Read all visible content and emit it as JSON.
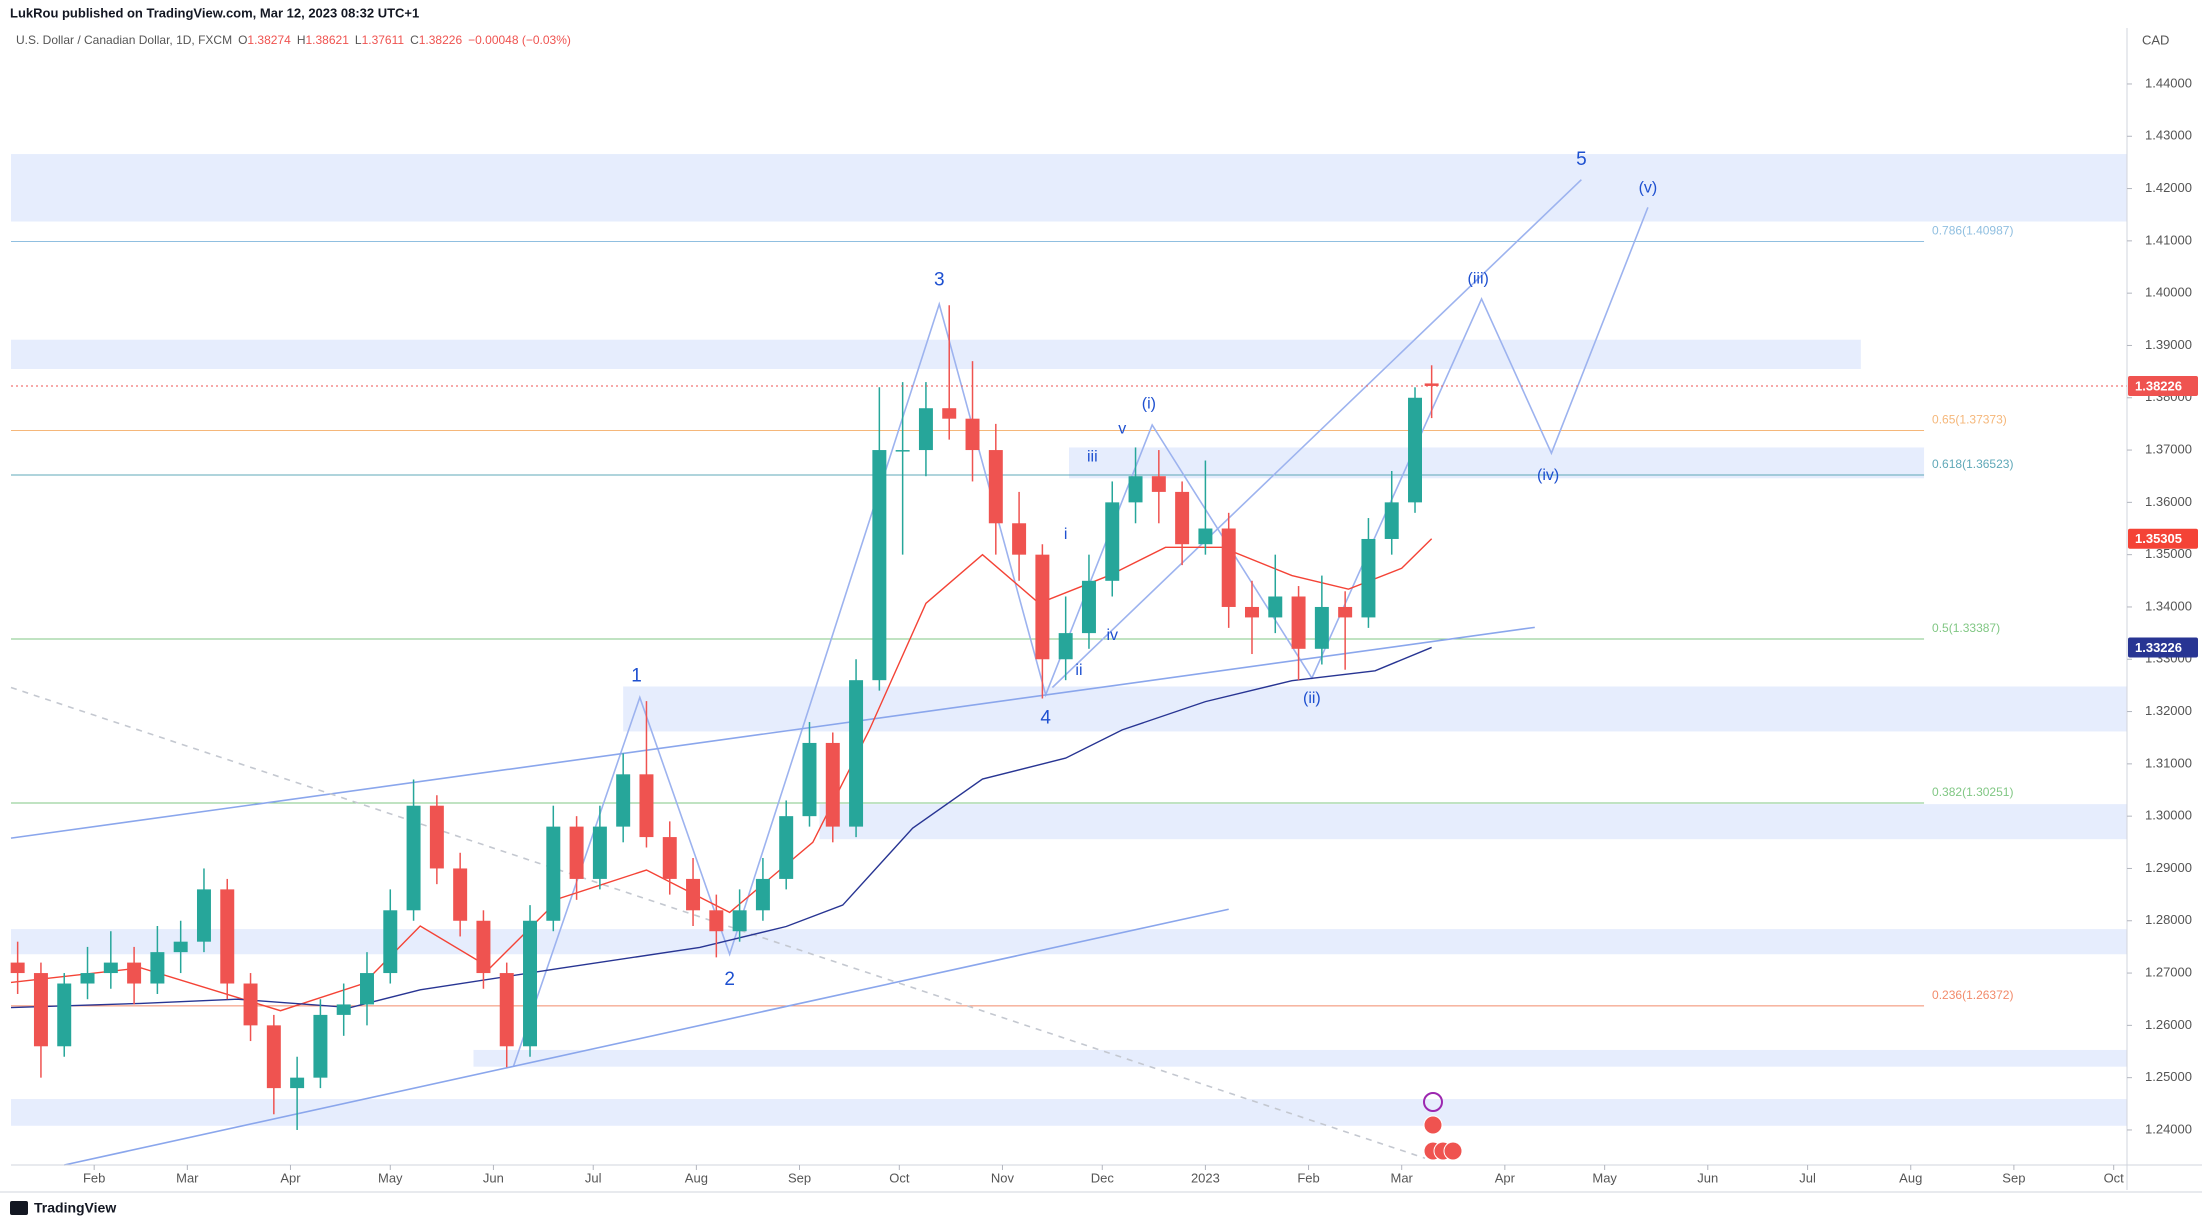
{
  "header": {
    "publisher": "LukRou published on TradingView.com, Mar 12, 2023 08:32 UTC+1",
    "symbol": "U.S. Dollar / Canadian Dollar, 1D, FXCM",
    "ohlc_letters": [
      "O",
      "H",
      "L",
      "C"
    ],
    "change": "−0.00048 (−0.03%)",
    "currency": "CAD",
    "brand": "TradingView"
  },
  "chart_data": {
    "type": "candlestick",
    "x": [
      2,
      9,
      16,
      23,
      30,
      37,
      44,
      51,
      58,
      65,
      72,
      79,
      86,
      93,
      100,
      107,
      114,
      121,
      128,
      135,
      142,
      149,
      156,
      163,
      170,
      177,
      184,
      191,
      198,
      205,
      212,
      219,
      226,
      233,
      240,
      247,
      254,
      261,
      268,
      275,
      282,
      289,
      296,
      303,
      310,
      317,
      324,
      331,
      338,
      345,
      352,
      359,
      366,
      373,
      380,
      387,
      394,
      401,
      408,
      415,
      422,
      427
    ],
    "open": [
      1.272,
      1.27,
      1.256,
      1.268,
      1.27,
      1.272,
      1.268,
      1.274,
      1.276,
      1.286,
      1.268,
      1.26,
      1.248,
      1.25,
      1.262,
      1.264,
      1.27,
      1.282,
      1.302,
      1.29,
      1.28,
      1.27,
      1.256,
      1.28,
      1.298,
      1.288,
      1.298,
      1.308,
      1.296,
      1.288,
      1.282,
      1.278,
      1.282,
      1.288,
      1.3,
      1.314,
      1.298,
      1.326,
      1.37,
      1.37,
      1.378,
      1.376,
      1.37,
      1.356,
      1.35,
      1.33,
      1.335,
      1.345,
      1.36,
      1.365,
      1.362,
      1.352,
      1.355,
      1.34,
      1.338,
      1.342,
      1.332,
      1.34,
      1.338,
      1.353,
      1.36,
      1.38274
    ],
    "high": [
      1.276,
      1.272,
      1.27,
      1.275,
      1.278,
      1.275,
      1.279,
      1.28,
      1.29,
      1.288,
      1.27,
      1.262,
      1.254,
      1.265,
      1.268,
      1.274,
      1.286,
      1.307,
      1.304,
      1.293,
      1.282,
      1.272,
      1.283,
      1.302,
      1.3,
      1.302,
      1.312,
      1.322,
      1.299,
      1.292,
      1.285,
      1.286,
      1.292,
      1.303,
      1.318,
      1.316,
      1.33,
      1.382,
      1.383,
      1.383,
      1.3977,
      1.387,
      1.375,
      1.362,
      1.352,
      1.342,
      1.35,
      1.364,
      1.3705,
      1.37,
      1.364,
      1.368,
      1.358,
      1.345,
      1.35,
      1.344,
      1.346,
      1.343,
      1.357,
      1.366,
      1.382,
      1.38621
    ],
    "low": [
      1.266,
      1.25,
      1.254,
      1.265,
      1.267,
      1.264,
      1.266,
      1.27,
      1.274,
      1.265,
      1.257,
      1.243,
      1.24,
      1.248,
      1.258,
      1.26,
      1.268,
      1.28,
      1.287,
      1.277,
      1.267,
      1.252,
      1.254,
      1.278,
      1.284,
      1.286,
      1.295,
      1.294,
      1.285,
      1.279,
      1.273,
      1.276,
      1.28,
      1.286,
      1.298,
      1.295,
      1.296,
      1.324,
      1.35,
      1.365,
      1.372,
      1.364,
      1.35,
      1.345,
      1.3225,
      1.326,
      1.332,
      1.342,
      1.356,
      1.356,
      1.348,
      1.35,
      1.336,
      1.331,
      1.335,
      1.326,
      1.329,
      1.328,
      1.336,
      1.35,
      1.358,
      1.37611
    ],
    "close": [
      1.27,
      1.256,
      1.268,
      1.27,
      1.272,
      1.268,
      1.274,
      1.276,
      1.286,
      1.268,
      1.26,
      1.248,
      1.25,
      1.262,
      1.264,
      1.27,
      1.282,
      1.302,
      1.29,
      1.28,
      1.27,
      1.256,
      1.28,
      1.298,
      1.288,
      1.298,
      1.308,
      1.296,
      1.288,
      1.282,
      1.278,
      1.282,
      1.288,
      1.3,
      1.314,
      1.298,
      1.326,
      1.37,
      1.37,
      1.378,
      1.376,
      1.37,
      1.356,
      1.35,
      1.33,
      1.335,
      1.345,
      1.36,
      1.365,
      1.362,
      1.352,
      1.355,
      1.34,
      1.338,
      1.342,
      1.332,
      1.34,
      1.338,
      1.353,
      1.36,
      1.38,
      1.38226
    ],
    "up_color": "#26a69a",
    "down_color": "#ef5350",
    "moving_averages": [
      {
        "color": "#f44336",
        "x": [
          0,
          39,
          81,
          106,
          123,
          144,
          165,
          191,
          216,
          241,
          258,
          275,
          292,
          309,
          330,
          347,
          364,
          385,
          402,
          418,
          427
        ],
        "values": [
          1.2682,
          1.271,
          1.2628,
          1.268,
          1.279,
          1.271,
          1.2843,
          1.2897,
          1.2816,
          1.295,
          1.3165,
          1.3407,
          1.35,
          1.3407,
          1.346,
          1.3514,
          1.3514,
          1.346,
          1.3434,
          1.3474,
          1.35305
        ]
      },
      {
        "color": "#283593",
        "x": [
          0,
          39,
          68,
          102,
          123,
          165,
          207,
          233,
          250,
          271,
          292,
          317,
          334,
          359,
          385,
          410,
          427
        ],
        "values": [
          1.2634,
          1.2642,
          1.265,
          1.2634,
          1.2668,
          1.2709,
          1.2749,
          1.2789,
          1.283,
          1.2977,
          1.3071,
          1.3111,
          1.3165,
          1.3219,
          1.3259,
          1.3278,
          1.33226
        ]
      }
    ],
    "xlim": [
      0,
      636
    ],
    "xticks": [
      {
        "value": 25,
        "label": "Feb"
      },
      {
        "value": 53,
        "label": "Mar"
      },
      {
        "value": 84,
        "label": "Apr"
      },
      {
        "value": 114,
        "label": "May"
      },
      {
        "value": 145,
        "label": "Jun"
      },
      {
        "value": 175,
        "label": "Jul"
      },
      {
        "value": 206,
        "label": "Aug"
      },
      {
        "value": 237,
        "label": "Sep"
      },
      {
        "value": 267,
        "label": "Oct"
      },
      {
        "value": 298,
        "label": "Nov"
      },
      {
        "value": 328,
        "label": "Dec"
      },
      {
        "value": 359,
        "label": "2023"
      },
      {
        "value": 390,
        "label": "Feb"
      },
      {
        "value": 418,
        "label": "Mar"
      },
      {
        "value": 449,
        "label": "Apr"
      },
      {
        "value": 479,
        "label": "May"
      },
      {
        "value": 510,
        "label": "Jun"
      },
      {
        "value": 540,
        "label": "Jul"
      },
      {
        "value": 571,
        "label": "Aug"
      },
      {
        "value": 602,
        "label": "Sep"
      },
      {
        "value": 632,
        "label": "Oct"
      }
    ],
    "ylim": [
      1.2333,
      1.4507
    ],
    "yticks": [
      {
        "value": 1.24,
        "label": "1.24000"
      },
      {
        "value": 1.25,
        "label": "1.25000"
      },
      {
        "value": 1.26,
        "label": "1.26000"
      },
      {
        "value": 1.27,
        "label": "1.27000"
      },
      {
        "value": 1.28,
        "label": "1.28000"
      },
      {
        "value": 1.29,
        "label": "1.29000"
      },
      {
        "value": 1.3,
        "label": "1.30000"
      },
      {
        "value": 1.31,
        "label": "1.31000"
      },
      {
        "value": 1.32,
        "label": "1.32000"
      },
      {
        "value": 1.33,
        "label": "1.33000"
      },
      {
        "value": 1.34,
        "label": "1.34000"
      },
      {
        "value": 1.35,
        "label": "1.35000"
      },
      {
        "value": 1.36,
        "label": "1.36000"
      },
      {
        "value": 1.37,
        "label": "1.37000"
      },
      {
        "value": 1.38,
        "label": "1.38000"
      },
      {
        "value": 1.39,
        "label": "1.39000"
      },
      {
        "value": 1.4,
        "label": "1.40000"
      },
      {
        "value": 1.41,
        "label": "1.41000"
      },
      {
        "value": 1.42,
        "label": "1.42000"
      },
      {
        "value": 1.43,
        "label": "1.43000"
      },
      {
        "value": 1.44,
        "label": "1.44000"
      }
    ],
    "grid": false,
    "zone_color": "#e6edfd",
    "zones": [
      {
        "top": 1.4266,
        "bottom": 1.4137
      },
      {
        "top": 1.3911,
        "bottom": 1.3855,
        "end": 556
      },
      {
        "top": 1.3705,
        "bottom": 1.3646,
        "start": 318,
        "end": 575
      },
      {
        "top": 1.3248,
        "bottom": 1.3162,
        "start": 184
      },
      {
        "top": 1.3023,
        "bottom": 1.2956,
        "start": 243
      },
      {
        "top": 1.2784,
        "bottom": 1.2736
      },
      {
        "top": 1.2553,
        "bottom": 1.2521,
        "start": 139
      },
      {
        "top": 1.2459,
        "bottom": 1.2408
      }
    ],
    "fib_end": 575,
    "fib_levels": [
      {
        "label": "0.786(1.40987)",
        "value": 1.40987,
        "color": "#90bfe0"
      },
      {
        "label": "0.65(1.37373)",
        "value": 1.37373,
        "color": "#f5b77a"
      },
      {
        "label": "0.618(1.36523)",
        "value": 1.36523,
        "color": "#5fa8b8"
      },
      {
        "label": "0.5(1.33387)",
        "value": 1.33387,
        "color": "#81c784"
      },
      {
        "label": "0.382(1.30251)",
        "value": 1.30251,
        "color": "#81c784"
      },
      {
        "label": "0.236(1.26372)",
        "value": 1.26372,
        "color": "#f28b6b"
      }
    ],
    "trendlines": [
      {
        "color": "#9db3ef",
        "points": [
          [
            151,
            1.2521
          ],
          [
            189,
            1.3227
          ],
          [
            216,
            1.2736
          ],
          [
            279,
            1.3979
          ],
          [
            311,
            1.3232
          ],
          [
            343,
            1.3748
          ],
          [
            391,
            1.3264
          ],
          [
            442,
            1.3989
          ],
          [
            463,
            1.3694
          ],
          [
            492,
            1.4164
          ]
        ]
      },
      {
        "color": "#9db3ef",
        "points": [
          [
            313,
            1.3246
          ],
          [
            472,
            1.4217
          ]
        ]
      },
      {
        "color": "#8aa6ec",
        "points": [
          [
            0,
            1.2958
          ],
          [
            458,
            1.3361
          ]
        ]
      },
      {
        "color": "#8aa6ec",
        "points": [
          [
            16,
            1.2333
          ],
          [
            366,
            1.2822
          ]
        ]
      },
      {
        "color": "#c4c8d0",
        "dashed": true,
        "points": [
          [
            0,
            1.3246
          ],
          [
            425,
            1.2346
          ]
        ]
      }
    ],
    "wave_color": "#1e50d0",
    "wave_labels": [
      {
        "text": "1",
        "x": 188,
        "y": 1.3267
      },
      {
        "text": "2",
        "x": 216,
        "y": 1.2687
      },
      {
        "text": "3",
        "x": 279,
        "y": 1.4024
      },
      {
        "text": "4",
        "x": 311,
        "y": 1.3187
      },
      {
        "text": "5",
        "x": 472,
        "y": 1.4255
      },
      {
        "text": "(i)",
        "x": 342,
        "y": 1.3788
      },
      {
        "text": "(ii)",
        "x": 391,
        "y": 1.3224
      },
      {
        "text": "(iii)",
        "x": 441,
        "y": 1.4027
      },
      {
        "text": "(iv)",
        "x": 462,
        "y": 1.3651
      },
      {
        "text": "(v)",
        "x": 492,
        "y": 1.4201
      },
      {
        "text": "i",
        "x": 317,
        "y": 1.3538
      },
      {
        "text": "ii",
        "x": 321,
        "y": 1.3278
      },
      {
        "text": "iii",
        "x": 325,
        "y": 1.3686
      },
      {
        "text": "iv",
        "x": 331,
        "y": 1.3345
      },
      {
        "text": "v",
        "x": 334,
        "y": 1.374
      }
    ]
  }
}
